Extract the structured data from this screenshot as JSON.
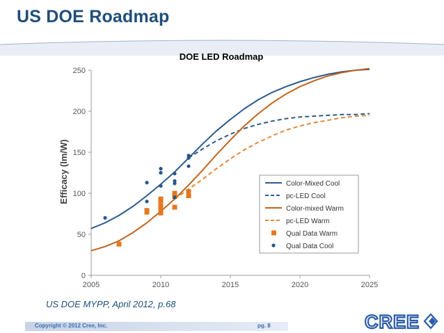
{
  "slide": {
    "title": "US DOE Roadmap",
    "citation": "US DOE MYPP, April 2012, p.68",
    "copyright": "Copyright © 2012 Cree, Inc.",
    "page": "pg. 8",
    "logo_text": "CREE"
  },
  "colors": {
    "blue": "#2c5a8c",
    "orange": "#c0641e",
    "orange_light": "#e0893a",
    "dot_blue": "#29568a",
    "square_orange": "#e3781f",
    "title": "#1f4e79"
  },
  "chart_data": {
    "type": "line",
    "title": "DOE LED Roadmap",
    "xlabel": "",
    "ylabel": "Efficacy (lm/W)",
    "xlim": [
      2005,
      2025
    ],
    "ylim": [
      0,
      250
    ],
    "x_ticks": [
      "2005",
      "2010",
      "2015",
      "2020",
      "2025"
    ],
    "y_ticks": [
      "0",
      "50",
      "100",
      "150",
      "200",
      "250"
    ],
    "grid": false,
    "legend_position": "bottom-right",
    "series": [
      {
        "name": "Color-Mixed Cool",
        "style": "solid",
        "color": "#2c5a8c",
        "x": [
          2005,
          2006,
          2007,
          2008,
          2009,
          2010,
          2011,
          2012,
          2013,
          2014,
          2015,
          2016,
          2017,
          2018,
          2019,
          2020,
          2021,
          2022,
          2023,
          2024,
          2025
        ],
        "y": [
          57,
          64,
          73,
          84,
          97,
          111,
          126,
          143,
          160,
          176,
          190,
          203,
          214,
          223,
          230,
          236,
          241,
          245,
          248,
          250,
          251
        ]
      },
      {
        "name": "pc-LED Cool",
        "style": "dashed",
        "color": "#2c5a8c",
        "x": [
          2012,
          2013,
          2014,
          2015,
          2016,
          2017,
          2018,
          2019,
          2020,
          2021,
          2022,
          2023,
          2024,
          2025
        ],
        "y": [
          143,
          154,
          164,
          172,
          179,
          184,
          188,
          191,
          193,
          194,
          195,
          196,
          196,
          197
        ]
      },
      {
        "name": "Color-mixed Warm",
        "style": "solid",
        "color": "#c0641e",
        "x": [
          2005,
          2006,
          2007,
          2008,
          2009,
          2010,
          2011,
          2012,
          2013,
          2014,
          2015,
          2016,
          2017,
          2018,
          2019,
          2020,
          2021,
          2022,
          2023,
          2024,
          2025
        ],
        "y": [
          30,
          35,
          42,
          52,
          64,
          78,
          93,
          110,
          128,
          147,
          165,
          182,
          197,
          210,
          221,
          230,
          237,
          243,
          247,
          250,
          252
        ]
      },
      {
        "name": "pc-LED Warm",
        "style": "dashed",
        "color": "#e0893a",
        "x": [
          2011,
          2012,
          2013,
          2014,
          2015,
          2016,
          2017,
          2018,
          2019,
          2020,
          2021,
          2022,
          2023,
          2024,
          2025
        ],
        "y": [
          93,
          105,
          117,
          130,
          142,
          153,
          162,
          170,
          177,
          182,
          186,
          189,
          192,
          194,
          195
        ]
      },
      {
        "name": "Qual Data Warm",
        "style": "square",
        "color": "#e3781f",
        "x": [
          2007,
          2009,
          2009,
          2010,
          2010,
          2010,
          2010,
          2010,
          2011,
          2011,
          2011,
          2012,
          2012
        ],
        "y": [
          38,
          77,
          79,
          76,
          80,
          85,
          91,
          93,
          83,
          96,
          100,
          97,
          102
        ]
      },
      {
        "name": "Qual Data Cool",
        "style": "dot",
        "color": "#29568a",
        "x": [
          2006,
          2009,
          2009,
          2010,
          2010,
          2010,
          2011,
          2011,
          2011,
          2011,
          2012,
          2012,
          2012
        ],
        "y": [
          70,
          90,
          113,
          109,
          125,
          130,
          95,
          112,
          115,
          124,
          133,
          143,
          146
        ]
      }
    ]
  }
}
